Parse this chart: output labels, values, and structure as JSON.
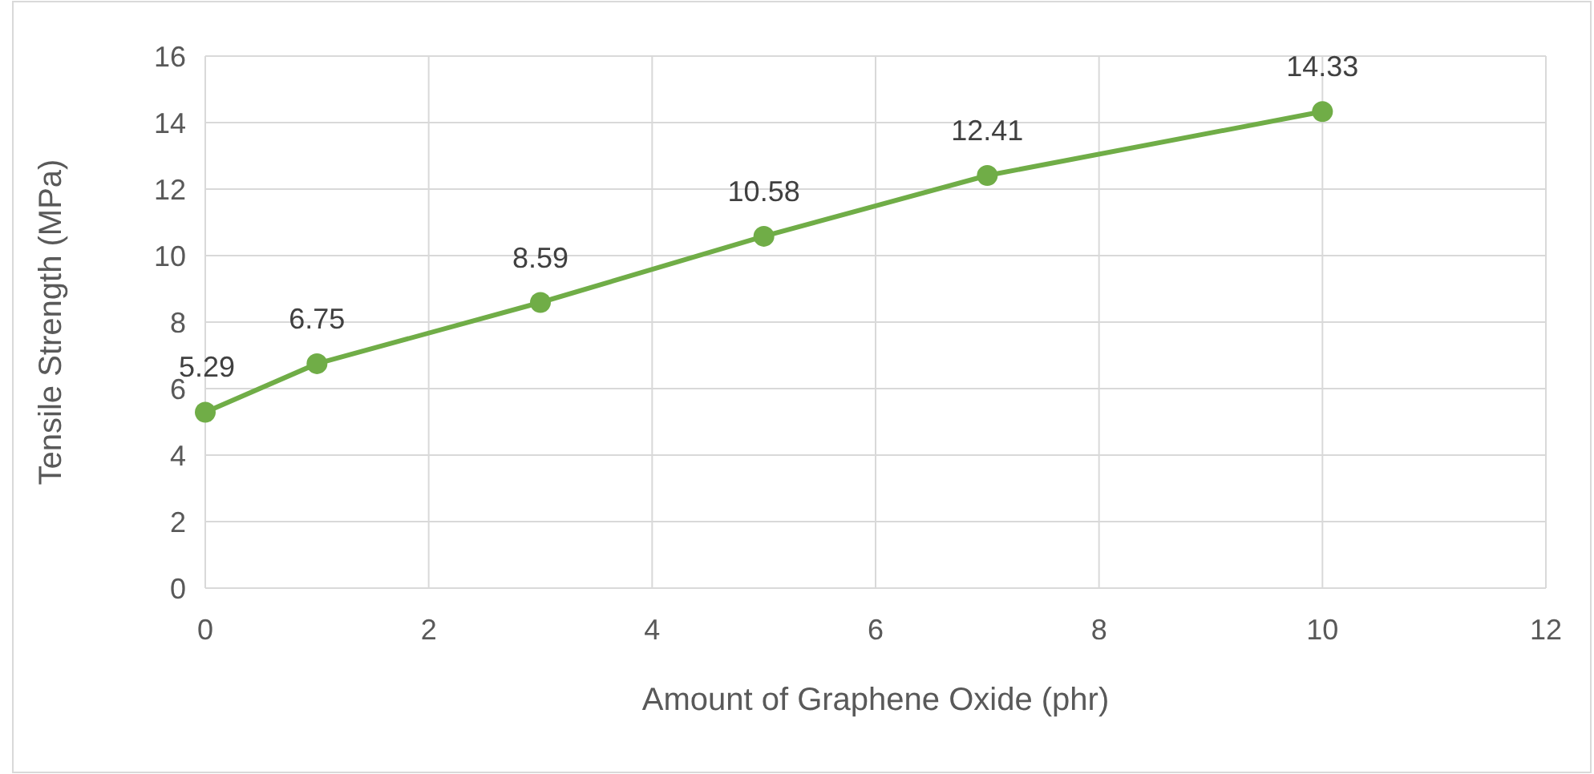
{
  "chart_data": {
    "type": "line",
    "xlabel": "Amount of Graphene Oxide (phr)",
    "ylabel": "Tensile Strength (MPa)",
    "x": [
      0,
      1,
      3,
      5,
      7,
      10
    ],
    "series": [
      {
        "color": "#70ad47",
        "values": [
          5.29,
          6.75,
          8.59,
          10.58,
          12.41,
          14.33
        ]
      }
    ],
    "xlim": [
      0,
      12
    ],
    "xticks": [
      0,
      2,
      4,
      6,
      8,
      10,
      12
    ],
    "ylim": [
      0,
      16
    ],
    "yticks": [
      0,
      2,
      4,
      6,
      8,
      10,
      12,
      14,
      16
    ],
    "grid": true,
    "marker": "circle",
    "line_style": "solid",
    "data_labels": true
  }
}
